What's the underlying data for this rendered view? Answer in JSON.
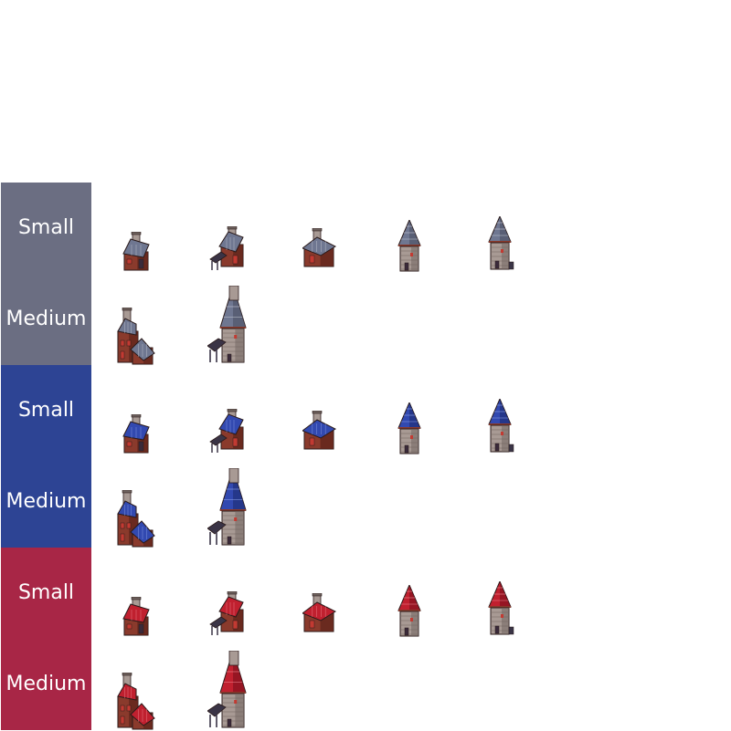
{
  "groups": [
    {
      "name": "gray",
      "colors": {
        "band": "#6b6e82",
        "roof": "#6f7791",
        "roof_dark": "#4b5063",
        "roof_line": "#c6c9d4"
      },
      "small_label": "Small",
      "medium_label": "Medium",
      "small_sprites": [
        "cottage",
        "cottage-porch",
        "shed",
        "tower-short",
        "tower-tall"
      ],
      "medium_sprites": [
        "house-large",
        "tower-porch"
      ]
    },
    {
      "name": "blue",
      "colors": {
        "band": "#2d4494",
        "roof": "#3249b0",
        "roof_dark": "#1d2c72",
        "roof_line": "#8fa3e8"
      },
      "small_label": "Small",
      "medium_label": "Medium",
      "small_sprites": [
        "cottage",
        "cottage-porch",
        "shed",
        "tower-short",
        "tower-tall"
      ],
      "medium_sprites": [
        "house-large",
        "tower-porch"
      ]
    },
    {
      "name": "red",
      "colors": {
        "band": "#a82646",
        "roof": "#c0202f",
        "roof_dark": "#7a0f1c",
        "roof_line": "#f08a93"
      },
      "small_label": "Small",
      "medium_label": "Medium",
      "small_sprites": [
        "cottage",
        "cottage-porch",
        "shed",
        "tower-short",
        "tower-tall"
      ],
      "medium_sprites": [
        "house-large",
        "tower-porch"
      ]
    }
  ]
}
